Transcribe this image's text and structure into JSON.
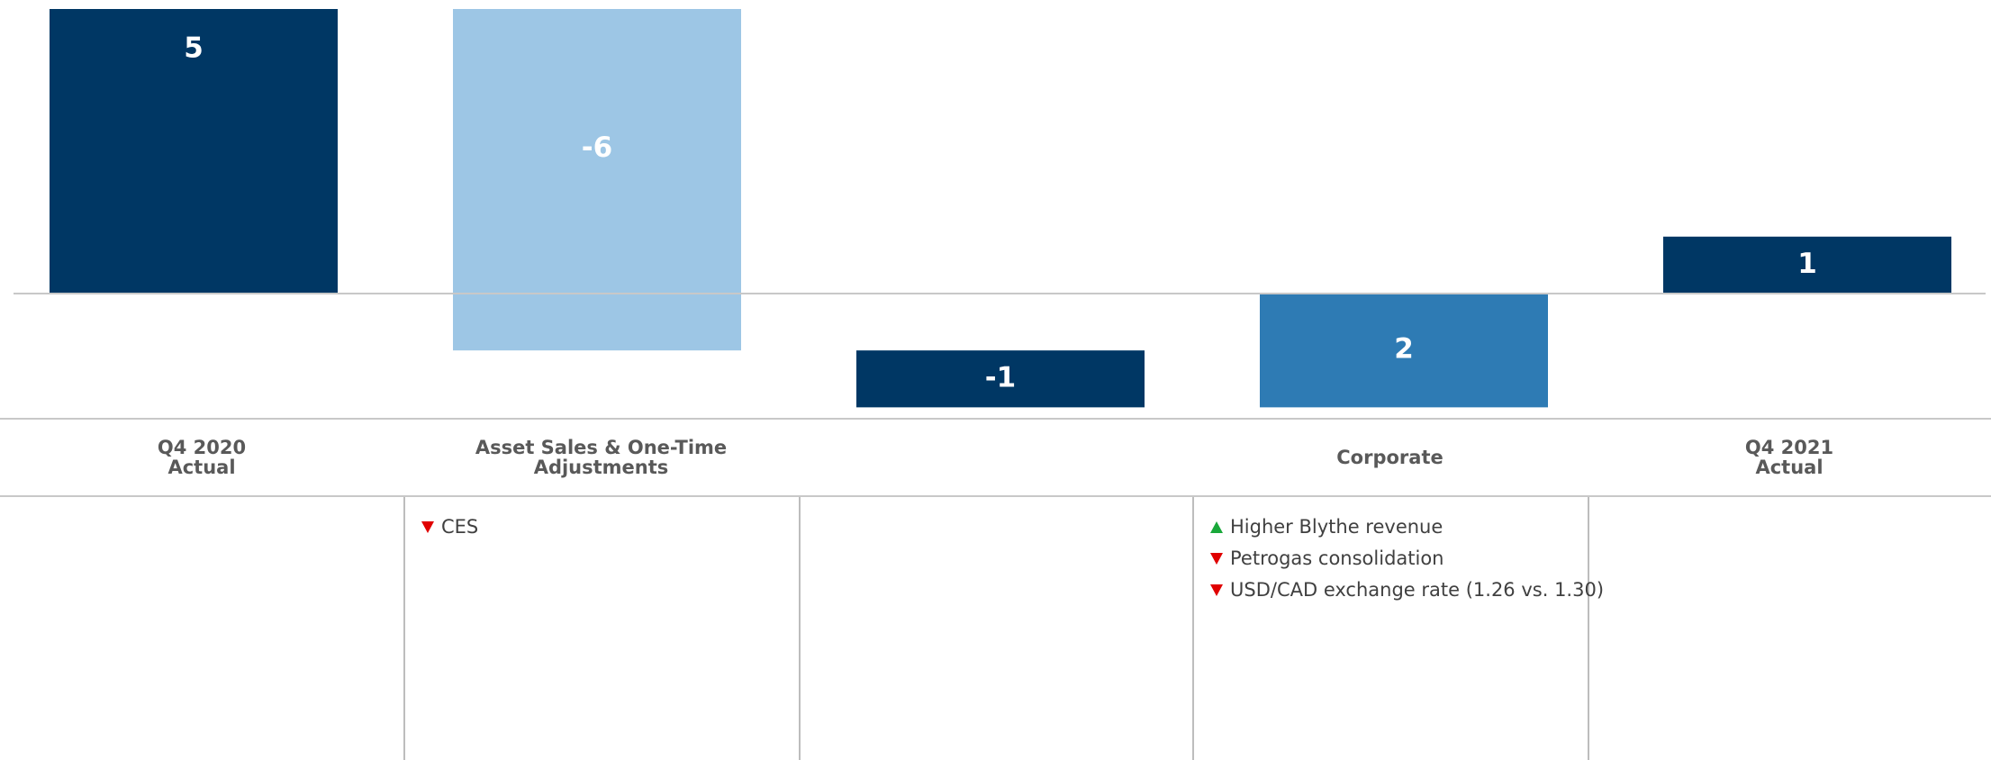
{
  "chart_data": {
    "type": "waterfall",
    "categories": [
      "Q4 2020 Actual",
      "Asset Sales & One-Time Adjustments",
      null,
      "Corporate",
      "Q4 2021 Actual"
    ],
    "values": [
      5,
      -6,
      -1,
      2,
      1
    ],
    "colors": [
      "#003764",
      "#9dc6e5",
      "#003764",
      "#2e7bb4",
      "#003764"
    ],
    "ylim": [
      -2.2,
      5
    ]
  },
  "notes": [
    [],
    [
      {
        "text": "CES",
        "direction": "down"
      }
    ],
    [],
    [
      {
        "text": "Higher Blythe revenue",
        "direction": "up"
      },
      {
        "text": "Petrogas consolidation",
        "direction": "down"
      },
      {
        "text": "USD/CAD exchange rate (1.26 vs. 1.30)",
        "direction": "down"
      }
    ],
    []
  ]
}
